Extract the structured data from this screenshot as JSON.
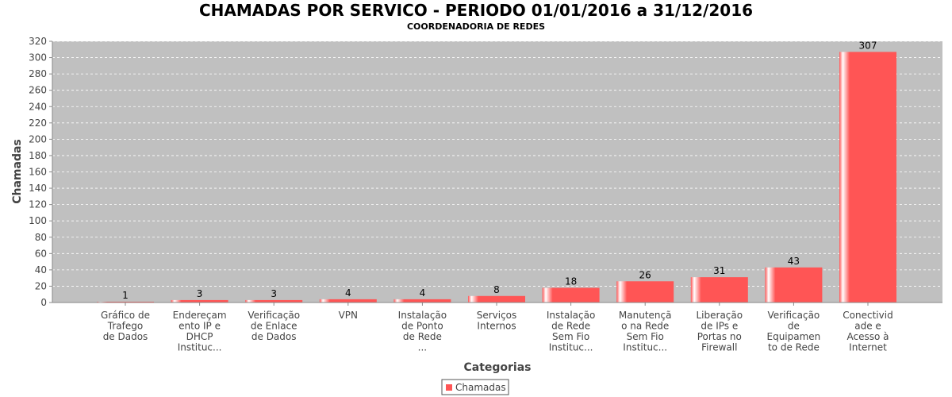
{
  "chart_data": {
    "type": "bar",
    "title": "CHAMADAS POR SERVICO - PERIODO 01/01/2016 a 31/12/2016",
    "subtitle": "COORDENADORIA DE REDES",
    "xlabel": "Categorias",
    "ylabel": "Chamadas",
    "ylim": [
      0,
      320
    ],
    "ytick_step": 20,
    "grid": true,
    "legend": "bottom-center",
    "categories": [
      "Gráfico de Trafego de Dados",
      "Endereçamento IP e DHCP Instituc...",
      "Verificação de Enlace de Dados",
      "VPN",
      "Instalação de Ponto de Rede ...",
      "Serviços Internos",
      "Instalação de Rede Sem Fio Instituc...",
      "Manutenção na Rede Sem Fio Instituc...",
      "Liberação de IPs e Portas no Firewall",
      "Verificação de Equipamento de Rede",
      "Conectividade e Acesso à Internet"
    ],
    "category_label_lines": [
      [
        "Gráfico de",
        "Trafego",
        "de Dados"
      ],
      [
        "Endereçam",
        "ento IP e",
        "DHCP",
        "Instituc..."
      ],
      [
        "Verificação",
        "de Enlace",
        "de Dados"
      ],
      [
        "VPN"
      ],
      [
        "Instalação",
        "de Ponto",
        "de Rede",
        "..."
      ],
      [
        "Serviços",
        "Internos"
      ],
      [
        "Instalação",
        "de Rede",
        "Sem Fio",
        "Instituc..."
      ],
      [
        "Manutençã",
        "o na Rede",
        "Sem Fio",
        "Instituc..."
      ],
      [
        "Liberação",
        "de IPs e",
        "Portas no",
        "Firewall"
      ],
      [
        "Verificação",
        "de",
        "Equipamen",
        "to de Rede"
      ],
      [
        "Conectivid",
        "ade e",
        "Acesso à",
        "Internet"
      ]
    ],
    "series": [
      {
        "name": "Chamadas",
        "color": "#ff5555",
        "values": [
          1,
          3,
          3,
          4,
          4,
          8,
          18,
          26,
          31,
          43,
          307
        ]
      }
    ]
  },
  "colors": {
    "plot_background": "#c0c0c0",
    "bar": "#ff5555",
    "bar_highlight": "#ffffff",
    "gridline": "#ffffff"
  }
}
